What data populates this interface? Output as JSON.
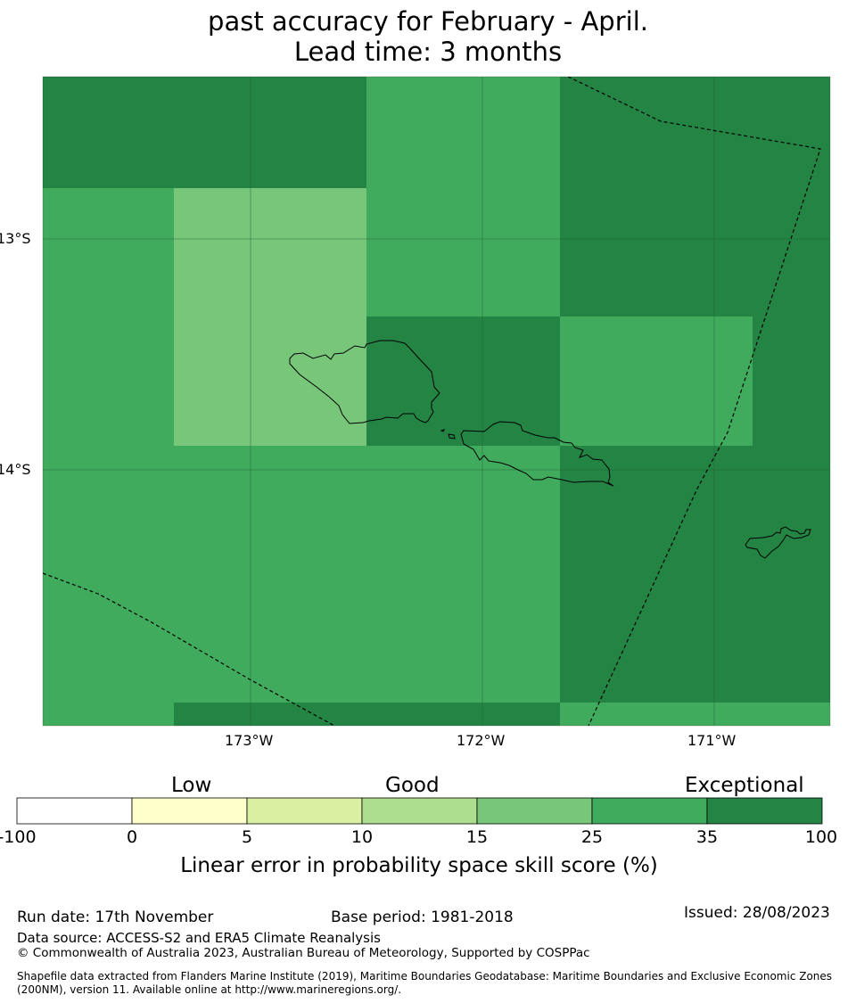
{
  "title": {
    "line1": "past accuracy for February - April.",
    "line2": "Lead time: 3 months"
  },
  "map": {
    "lat_labels": [
      "13°S",
      "14°S"
    ],
    "lon_labels": [
      "173°W",
      "172°W",
      "171°W"
    ],
    "colors": {
      "exceptional_35_100": "#238443",
      "band_25_35": "#41ab5d",
      "band_15_25": "#78c679",
      "band_10_15": "#addd8e",
      "band_5_10": "#d9f0a3",
      "band_0_5": "#ffffcc",
      "band_neg": "#ffffff"
    }
  },
  "legend": {
    "categories": [
      "Low",
      "Good",
      "Exceptional"
    ],
    "ticks": [
      "-100",
      "0",
      "5",
      "10",
      "15",
      "25",
      "35",
      "100"
    ],
    "title": "Linear error in probability space skill score (%)"
  },
  "footer": {
    "run_date": "Run date: 17th November",
    "base_period": "Base period: 1981-2018",
    "issued": "Issued: 28/08/2023",
    "data_source": "Data source: ACCESS-S2 and ERA5 Climate Reanalysis",
    "copyright": "© Commonwealth of Australia 2023, Australian Bureau of Meteorology, Supported by COSPPac",
    "shapefile_line1": "Shapefile data extracted from Flanders Marine Institute (2019), Maritime Boundaries Geodatabase: Maritime Boundaries and Exclusive Economic Zones",
    "shapefile_line2": "(200NM), version 11. Available online at http://www.marineregions.org/."
  }
}
